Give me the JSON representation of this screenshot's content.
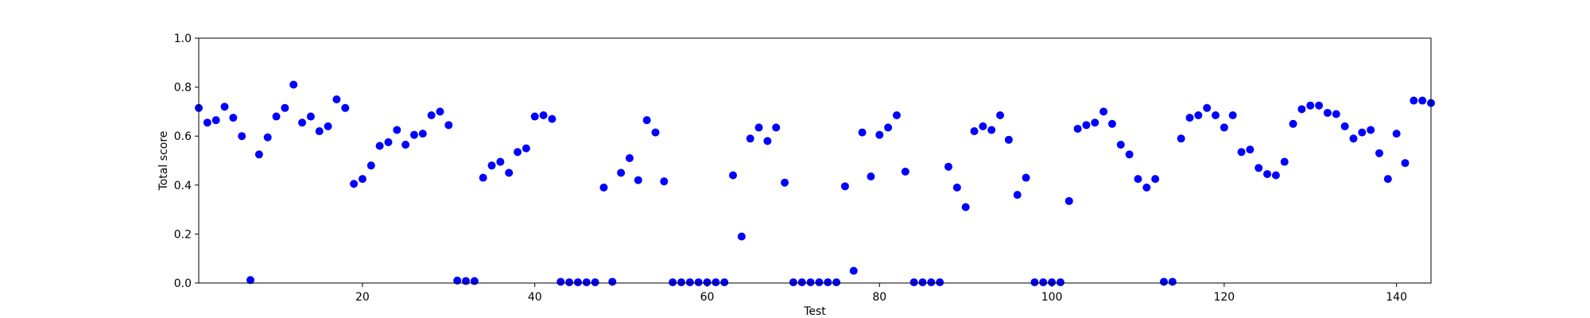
{
  "chart_data": {
    "type": "scatter",
    "xlabel": "Test",
    "ylabel": "Total score",
    "xlim": [
      1,
      144
    ],
    "ylim": [
      0,
      1.0
    ],
    "x_ticks": [
      20,
      40,
      60,
      80,
      100,
      120,
      140
    ],
    "x_tick_labels": [
      "20",
      "40",
      "60",
      "80",
      "100",
      "120",
      "140"
    ],
    "y_ticks": [
      0,
      0.2,
      0.4,
      0.6,
      0.8,
      1.0
    ],
    "y_tick_labels": [
      "0.0",
      "0.2",
      "0.4",
      "0.6",
      "0.8",
      "1.0"
    ],
    "grid": false,
    "marker_color": "#0000ff",
    "series": [
      {
        "x": [
          1,
          2,
          3,
          4,
          5,
          6,
          7,
          8,
          9,
          10,
          11,
          12,
          13,
          14,
          15,
          16,
          17,
          18,
          19,
          20,
          21,
          22,
          23,
          24,
          25,
          26,
          27,
          28,
          29,
          30,
          31,
          32,
          33,
          34,
          35,
          36,
          37,
          38,
          39,
          40,
          41,
          42,
          43,
          44,
          45,
          46,
          47,
          48,
          49,
          50,
          51,
          52,
          53,
          54,
          55,
          56,
          57,
          58,
          59,
          60,
          61,
          62,
          63,
          64,
          65,
          66,
          67,
          68,
          69,
          70,
          71,
          72,
          73,
          74,
          75,
          76,
          77,
          78,
          79,
          80,
          81,
          82,
          83,
          84,
          85,
          86,
          87,
          88,
          89,
          90,
          91,
          92,
          93,
          94,
          95,
          96,
          97,
          98,
          99,
          100,
          101,
          102,
          103,
          104,
          105,
          106,
          107,
          108,
          109,
          110,
          111,
          112,
          113,
          114,
          115,
          116,
          117,
          118,
          119,
          120,
          121,
          122,
          123,
          124,
          125,
          126,
          127,
          128,
          129,
          130,
          131,
          132,
          133,
          134,
          135,
          136,
          137,
          138,
          139,
          140,
          141,
          142,
          143,
          144
        ],
        "y": [
          0.715,
          0.655,
          0.665,
          0.72,
          0.675,
          0.6,
          0.012,
          0.525,
          0.595,
          0.68,
          0.715,
          0.81,
          0.655,
          0.68,
          0.62,
          0.64,
          0.75,
          0.715,
          0.405,
          0.425,
          0.48,
          0.56,
          0.575,
          0.625,
          0.565,
          0.605,
          0.61,
          0.685,
          0.7,
          0.645,
          0.01,
          0.008,
          0.008,
          0.43,
          0.48,
          0.495,
          0.45,
          0.535,
          0.55,
          0.68,
          0.685,
          0.67,
          0.005,
          0.003,
          0.003,
          0.003,
          0.003,
          0.39,
          0.005,
          0.45,
          0.51,
          0.42,
          0.665,
          0.615,
          0.415,
          0.003,
          0.003,
          0.003,
          0.003,
          0.003,
          0.003,
          0.003,
          0.44,
          0.19,
          0.59,
          0.635,
          0.58,
          0.635,
          0.41,
          0.003,
          0.003,
          0.003,
          0.003,
          0.003,
          0.003,
          0.395,
          0.05,
          0.615,
          0.435,
          0.605,
          0.635,
          0.685,
          0.455,
          0.003,
          0.003,
          0.003,
          0.003,
          0.475,
          0.39,
          0.31,
          0.62,
          0.64,
          0.625,
          0.685,
          0.585,
          0.36,
          0.43,
          0.003,
          0.003,
          0.003,
          0.003,
          0.335,
          0.63,
          0.645,
          0.655,
          0.7,
          0.65,
          0.565,
          0.525,
          0.425,
          0.39,
          0.425,
          0.005,
          0.005,
          0.59,
          0.675,
          0.685,
          0.715,
          0.685,
          0.635,
          0.685,
          0.535,
          0.545,
          0.47,
          0.445,
          0.44,
          0.495,
          0.65,
          0.71,
          0.725,
          0.725,
          0.695,
          0.69,
          0.64,
          0.59,
          0.615,
          0.625,
          0.53,
          0.425,
          0.61,
          0.49,
          0.745,
          0.745,
          0.735
        ]
      }
    ]
  }
}
